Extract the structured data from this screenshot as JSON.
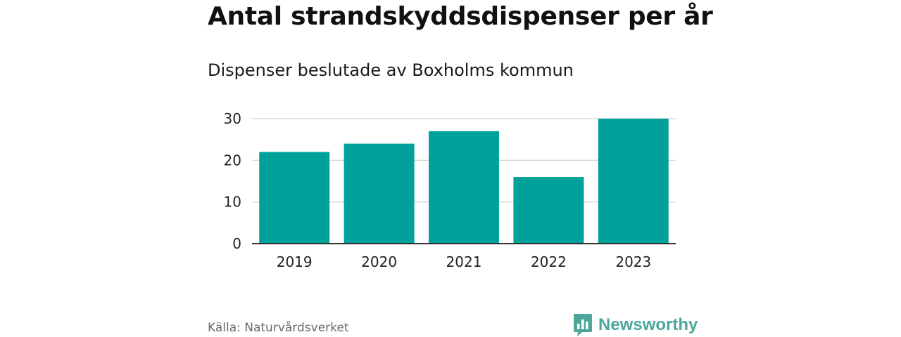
{
  "header": {
    "title": "Antal strandskyddsdispenser per år",
    "subtitle": "Dispenser beslutade av Boxholms kommun"
  },
  "footer": {
    "source": "Källa: Naturvårdsverket",
    "brand": "Newsworthy"
  },
  "colors": {
    "bar": "#00a19a",
    "grid": "#d9d9d9",
    "axis": "#333333",
    "brand": "#4aa79a"
  },
  "chart_data": {
    "type": "bar",
    "title": "Antal strandskyddsdispenser per år",
    "subtitle": "Dispenser beslutade av Boxholms kommun",
    "categories": [
      "2019",
      "2020",
      "2021",
      "2022",
      "2023"
    ],
    "values": [
      22,
      24,
      27,
      16,
      30
    ],
    "xlabel": "",
    "ylabel": "",
    "ylim": [
      0,
      30
    ],
    "yticks": [
      0,
      10,
      20,
      30
    ],
    "grid": true,
    "legend": "none"
  }
}
